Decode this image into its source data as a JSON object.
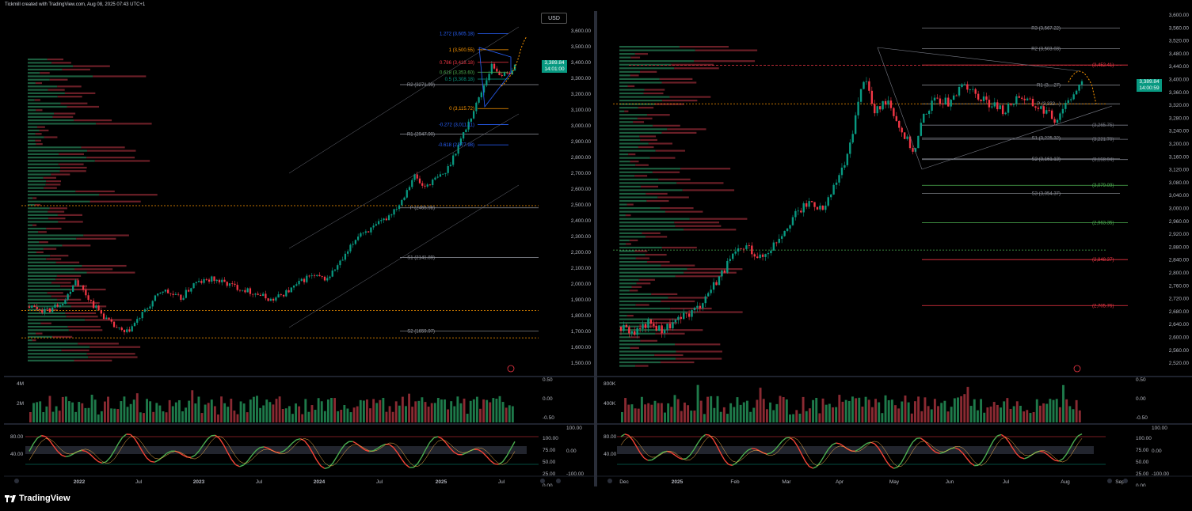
{
  "header": {
    "text": "Tickmill created with TradingView.com, Aug 08, 2025 07:43 UTC+1"
  },
  "brand": {
    "name": "TradingView"
  },
  "currency_button": "USD",
  "colors": {
    "up": "#089981",
    "down": "#f23645",
    "bg": "#000000",
    "accent_orange": "#ff9800",
    "fib_blue": "#2962ff",
    "stoch_green": "#4caf50",
    "stoch_red": "#f44336"
  },
  "chart_data": [
    {
      "type": "candlestick",
      "pane": "left",
      "timeframe": "weekly",
      "ylim": [
        1450,
        3650
      ],
      "y_ticks": [
        "3,600.00",
        "3,500.00",
        "3,400.00",
        "3,300.00",
        "3,200.00",
        "3,100.00",
        "3,000.00",
        "2,900.00",
        "2,800.00",
        "2,700.00",
        "2,600.00",
        "2,500.00",
        "2,400.00",
        "2,300.00",
        "2,200.00",
        "2,100.00",
        "2,000.00",
        "1,900.00",
        "1,800.00",
        "1,700.00",
        "1,600.00",
        "1,500.00"
      ],
      "x_ticks": [
        "2022",
        "Jul",
        "2023",
        "Jul",
        "2024",
        "Jul",
        "2025",
        "Jul"
      ],
      "price_path": [
        [
          0,
          1820
        ],
        [
          8,
          1790
        ],
        [
          16,
          1870
        ],
        [
          20,
          2000
        ],
        [
          28,
          1830
        ],
        [
          36,
          1700
        ],
        [
          42,
          1640
        ],
        [
          50,
          1780
        ],
        [
          58,
          1930
        ],
        [
          66,
          1870
        ],
        [
          72,
          1970
        ],
        [
          80,
          2000
        ],
        [
          90,
          1950
        ],
        [
          100,
          1900
        ],
        [
          106,
          1860
        ],
        [
          114,
          1930
        ],
        [
          122,
          2020
        ],
        [
          130,
          2000
        ],
        [
          138,
          2150
        ],
        [
          144,
          2300
        ],
        [
          150,
          2330
        ],
        [
          156,
          2400
        ],
        [
          162,
          2500
        ],
        [
          168,
          2680
        ],
        [
          172,
          2600
        ],
        [
          176,
          2640
        ],
        [
          182,
          2700
        ],
        [
          188,
          2900
        ],
        [
          194,
          3100
        ],
        [
          198,
          3250
        ],
        [
          202,
          3400
        ],
        [
          205,
          3350
        ],
        [
          208,
          3330
        ],
        [
          212,
          3390
        ]
      ],
      "last_price": {
        "value": "3,389.84",
        "countdown": "14:01:00"
      },
      "levels": [
        {
          "label": "R2 (3271.99)",
          "value": 3271.99
        },
        {
          "label": "R1 (2947.90)",
          "value": 2947.9
        },
        {
          "label": "P (2465.98)",
          "value": 2465.98
        },
        {
          "label": "S1 (2141.89)",
          "value": 2141.89
        },
        {
          "label": "S2 (1659.97)",
          "value": 1659.97
        }
      ],
      "fib_levels": [
        {
          "label": "1.272 (3,605.18)",
          "value": 3605.18,
          "color": "#2962ff"
        },
        {
          "label": "1 (3,500.55)",
          "value": 3500.55,
          "color": "#ff9800"
        },
        {
          "label": "0.786 (3,418.18)",
          "value": 3418.18,
          "color": "#f23645"
        },
        {
          "label": "0.618 (3,353.60)",
          "value": 3353.6,
          "color": "#4caf50"
        },
        {
          "label": "0.5 (3,308.18)",
          "value": 3308.18,
          "color": "#089981"
        },
        {
          "label": "0 (3,115.72)",
          "value": 3115.72,
          "color": "#ff9800"
        },
        {
          "label": "-0.272 (3,011.11)",
          "value": 3011.11,
          "color": "#2962ff"
        },
        {
          "label": "-0.618 (2,877.98)",
          "value": 2877.98,
          "color": "#2962ff"
        }
      ],
      "volume_axis": [
        "4M",
        "2M"
      ],
      "stoch_axis_left": [
        "80.00",
        "40.00"
      ],
      "osc_axis_right": [
        [
          "0.50",
          "0.00",
          "-0.50"
        ],
        [
          "100.00",
          "75.00",
          "50.00",
          "25.00",
          "0.00"
        ],
        [
          "100.00",
          "0.00",
          "-100.00"
        ]
      ]
    },
    {
      "type": "candlestick",
      "pane": "right",
      "timeframe": "daily",
      "ylim": [
        2510,
        3610
      ],
      "y_ticks": [
        "3,600.00",
        "3,560.00",
        "3,520.00",
        "3,480.00",
        "3,440.00",
        "3,400.00",
        "3,360.00",
        "3,320.00",
        "3,280.00",
        "3,240.00",
        "3,200.00",
        "3,160.00",
        "3,120.00",
        "3,080.00",
        "3,040.00",
        "3,000.00",
        "2,960.00",
        "2,920.00",
        "2,880.00",
        "2,840.00",
        "2,800.00",
        "2,760.00",
        "2,720.00",
        "2,680.00",
        "2,640.00",
        "2,600.00",
        "2,560.00",
        "2,520.00"
      ],
      "x_ticks": [
        "Dec",
        "2025",
        "Feb",
        "Mar",
        "Apr",
        "May",
        "Jun",
        "Jul",
        "Aug",
        "Sep"
      ],
      "price_path": [
        [
          0,
          2640
        ],
        [
          6,
          2620
        ],
        [
          12,
          2650
        ],
        [
          18,
          2630
        ],
        [
          26,
          2660
        ],
        [
          34,
          2700
        ],
        [
          42,
          2780
        ],
        [
          50,
          2860
        ],
        [
          56,
          2890
        ],
        [
          62,
          2850
        ],
        [
          68,
          2900
        ],
        [
          76,
          2980
        ],
        [
          84,
          3030
        ],
        [
          90,
          3000
        ],
        [
          96,
          3100
        ],
        [
          100,
          3160
        ],
        [
          104,
          3300
        ],
        [
          108,
          3430
        ],
        [
          112,
          3300
        ],
        [
          118,
          3350
        ],
        [
          124,
          3250
        ],
        [
          130,
          3180
        ],
        [
          134,
          3300
        ],
        [
          140,
          3350
        ],
        [
          146,
          3330
        ],
        [
          152,
          3400
        ],
        [
          158,
          3350
        ],
        [
          164,
          3330
        ],
        [
          170,
          3310
        ],
        [
          176,
          3360
        ],
        [
          182,
          3330
        ],
        [
          188,
          3310
        ],
        [
          192,
          3280
        ],
        [
          198,
          3350
        ],
        [
          204,
          3390
        ]
      ],
      "last_price": {
        "value": "3,389.84",
        "countdown": "14:00:59"
      },
      "levels": [
        {
          "label": "R3 (3,567.22)",
          "value": 3567.22
        },
        {
          "label": "R2 (3,503.03)",
          "value": 3503.03
        },
        {
          "label": "R1 (3,...27)",
          "value": 3390.27
        },
        {
          "label": "P (3,332...)",
          "value": 3332.0
        },
        {
          "label": "S1 (3,225.32)",
          "value": 3225.32
        },
        {
          "label": "S2 (3,161.13)",
          "value": 3161.13
        },
        {
          "label": "S3 (3,054.37)",
          "value": 3054.37
        }
      ],
      "camarilla": [
        {
          "label": "(3,452.41)",
          "value": 3452.41,
          "color": "#f23645"
        },
        {
          "label": "(3,265.75)",
          "value": 3265.75,
          "color": "#787b86"
        },
        {
          "label": "(3,221.70)",
          "value": 3221.7,
          "color": "#787b86"
        },
        {
          "label": "(3,158.94)",
          "value": 3158.94,
          "color": "#787b86"
        },
        {
          "label": "(3,079.09)",
          "value": 3079.09,
          "color": "#4caf50"
        },
        {
          "label": "(2,963.35)",
          "value": 2963.35,
          "color": "#4caf50"
        },
        {
          "label": "(2,848.37)",
          "value": 2848.37,
          "color": "#f23645"
        },
        {
          "label": "(2,705.76)",
          "value": 2705.76,
          "color": "#f23645"
        }
      ],
      "volume_axis": [
        "800K",
        "400K"
      ],
      "stoch_axis_left": [
        "80.00",
        "40.00"
      ],
      "osc_axis_right": [
        [
          "0.50",
          "0.00",
          "-0.50"
        ],
        [
          "100.00",
          "75.00",
          "50.00",
          "25.00",
          "0.00"
        ],
        [
          "100.00",
          "0.00",
          "-100.00"
        ]
      ]
    }
  ]
}
